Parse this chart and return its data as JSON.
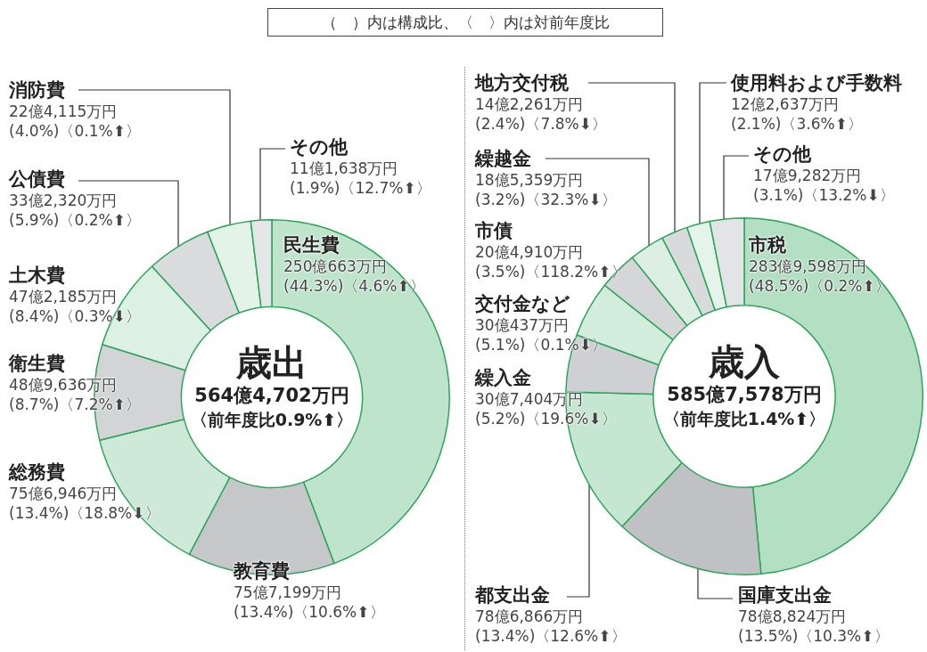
{
  "chart_data": [
    {
      "type": "donut",
      "title": "歳出",
      "subtitle": "564億4,702万円",
      "annotations": [
        "〈前年度比0.9%⬆〉",
        "（　）内は構成比、〈　〉内は対前年度比"
      ],
      "categories": [
        "民生費",
        "教育費",
        "総務費",
        "衛生費",
        "土木費",
        "公債費",
        "消防費",
        "その他"
      ],
      "values": [
        44.3,
        13.4,
        13.4,
        8.7,
        8.4,
        5.9,
        4.0,
        1.9
      ],
      "colors": [
        "#bfe4cc",
        "#c6c7c9",
        "#cfe9d8",
        "#d3d4d6",
        "#dcf0e3",
        "#dadbdd",
        "#e3f3e8",
        "#e5e6e8"
      ],
      "value_labels": [
        "250億663万円\n(44.3%)〈4.6%⬆〉",
        "75億7,199万円\n(13.4%)〈10.6%⬆〉",
        "75億6,946万円\n(13.4%)〈18.8%⬇〉",
        "48億9,636万円\n(8.7%)〈7.2%⬆〉",
        "47億2,185万円\n(8.4%)〈0.3%⬇〉",
        "33億2,320万円\n(5.9%)〈0.2%⬆〉",
        "22億4,115万円\n(4.0%)〈0.1%⬆〉",
        "11億1,638万円\n(1.9%)〈12.7%⬆〉"
      ]
    },
    {
      "type": "donut",
      "title": "歳入",
      "subtitle": "585億7,578万円",
      "annotations": [
        "〈前年度比1.4%⬆〉"
      ],
      "categories": [
        "市税",
        "国庫支出金",
        "都支出金",
        "繰入金",
        "交付金など",
        "市債",
        "繰越金",
        "地方交付税",
        "使用料および手数料",
        "その他"
      ],
      "values": [
        48.5,
        13.5,
        13.4,
        5.2,
        5.1,
        3.5,
        3.2,
        2.4,
        2.1,
        3.1
      ],
      "colors": [
        "#b3dfc2",
        "#c0c1c4",
        "#c5e6d0",
        "#cfd0d3",
        "#d3eddc",
        "#d5d6d8",
        "#dcefe2",
        "#d9dadc",
        "#e4f4ea",
        "#e3e4e6"
      ],
      "value_labels": [
        "283億9,598万円\n(48.5%)〈0.2%⬆〉",
        "78億8,824万円\n(13.5%)〈10.3%⬆〉",
        "78億6,866万円\n(13.4%)〈12.6%⬆〉",
        "30億7,404万円\n(5.2%)〈19.6%⬇〉",
        "30億437万円\n(5.1%)〈0.1%⬇〉",
        "20億4,910万円\n(3.5%)〈118.2%⬆〉",
        "18億5,359万円\n(3.2%)〈32.3%⬇〉",
        "14億2,261万円\n(2.4%)〈7.8%⬇〉",
        "12億2,637万円\n(2.1%)〈3.6%⬆〉",
        "17億9,282万円\n(3.1%)〈13.2%⬇〉"
      ]
    }
  ]
}
